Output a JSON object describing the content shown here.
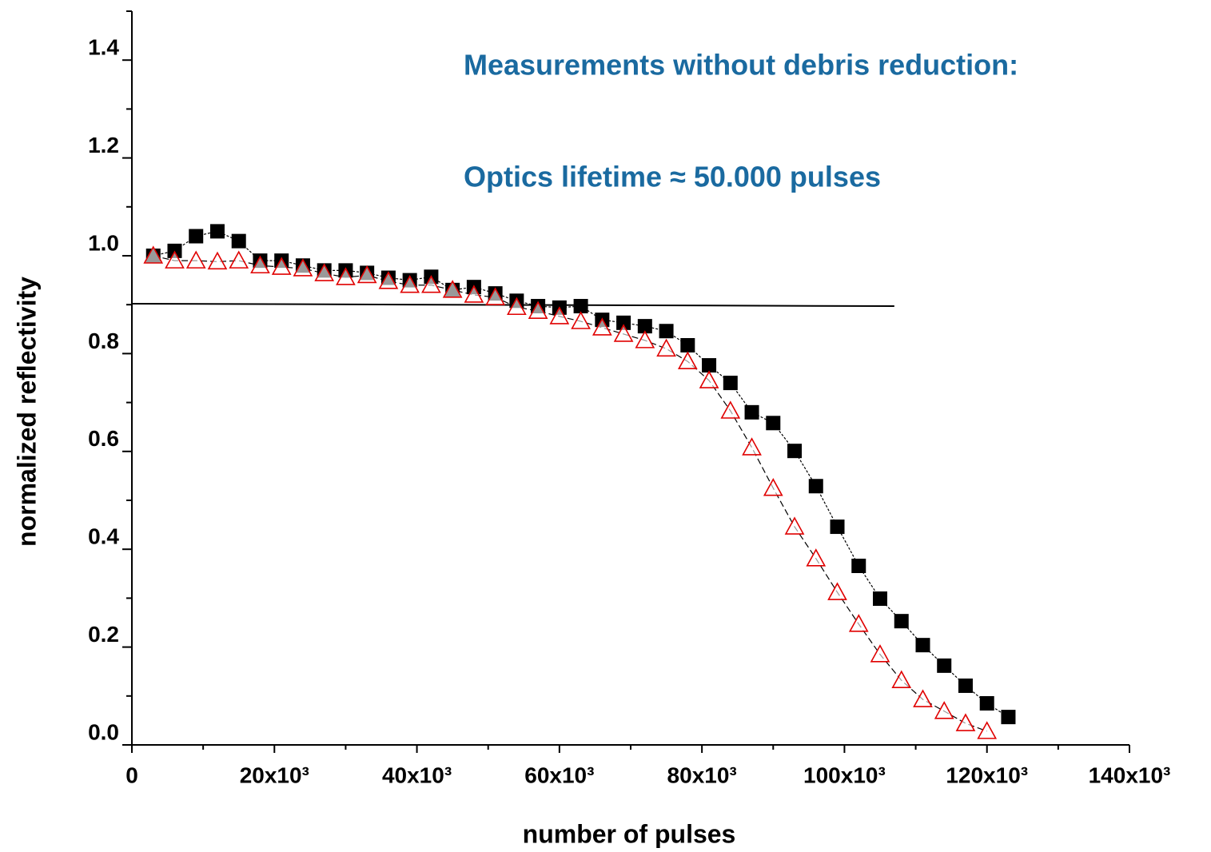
{
  "chart_data": {
    "type": "scatter",
    "xlabel": "number of pulses",
    "ylabel": "normalized reflectivity",
    "annotations": [
      "Measurements without debris reduction:",
      "Optics lifetime ≈ 50.000 pulses"
    ],
    "xlim": [
      0,
      140000
    ],
    "ylim": [
      0,
      1.5
    ],
    "xticks": [
      {
        "value": 0,
        "label": "0"
      },
      {
        "value": 20000,
        "label": "20x10³"
      },
      {
        "value": 40000,
        "label": "40x10³"
      },
      {
        "value": 60000,
        "label": "60x10³"
      },
      {
        "value": 80000,
        "label": "80x10³"
      },
      {
        "value": 100000,
        "label": "100x10³"
      },
      {
        "value": 120000,
        "label": "120x10³"
      },
      {
        "value": 140000,
        "label": "140x10³"
      }
    ],
    "xminorticks": [
      10000,
      30000,
      50000,
      70000,
      90000,
      110000,
      130000
    ],
    "yticks": [
      {
        "value": 0,
        "label": "0.0"
      },
      0.2,
      0.4,
      0.6,
      0.8,
      {
        "value": 1,
        "label": "1.0"
      },
      1.2,
      1.4
    ],
    "yminorticks": [
      0.1,
      0.3,
      0.5,
      0.7,
      0.9,
      1.1,
      1.3,
      1.5
    ],
    "x": [
      3000,
      6000,
      9000,
      12000,
      15000,
      18000,
      21000,
      24000,
      27000,
      30000,
      33000,
      36000,
      39000,
      42000,
      45000,
      48000,
      51000,
      54000,
      57000,
      60000,
      63000,
      66000,
      69000,
      72000,
      75000,
      78000,
      81000,
      84000,
      87000,
      90000,
      93000,
      96000,
      99000,
      102000,
      105000,
      108000,
      111000,
      114000,
      117000,
      120000,
      123000
    ],
    "series": [
      {
        "marker": "square",
        "color": "#000000",
        "values": [
          1.0,
          1.01,
          1.04,
          1.05,
          1.03,
          0.99,
          0.99,
          0.98,
          0.97,
          0.97,
          0.965,
          0.955,
          0.95,
          0.957,
          0.93,
          0.936,
          0.923,
          0.908,
          0.897,
          0.894,
          0.897,
          0.869,
          0.863,
          0.856,
          0.846,
          0.817,
          0.776,
          0.74,
          0.68,
          0.658,
          0.601,
          0.529,
          0.446,
          0.366,
          0.299,
          0.253,
          0.204,
          0.162,
          0.121,
          0.085,
          0.057
        ]
      },
      {
        "marker": "triangle",
        "color": "#e00000",
        "values": [
          1.0,
          0.99,
          0.99,
          0.988,
          0.99,
          0.98,
          0.977,
          0.974,
          0.964,
          0.956,
          0.96,
          0.948,
          0.94,
          0.94,
          0.93,
          0.92,
          0.915,
          0.895,
          0.887,
          0.876,
          0.866,
          0.853,
          0.84,
          0.827,
          0.81,
          0.784,
          0.745,
          0.683,
          0.608,
          0.525,
          0.446,
          0.381,
          0.312,
          0.247,
          0.185,
          0.132,
          0.093,
          0.069,
          0.044,
          0.028,
          null
        ]
      }
    ],
    "reference_line": {
      "x": [
        0,
        107000
      ],
      "y": [
        0.902,
        0.897
      ],
      "color": "#000000"
    }
  }
}
